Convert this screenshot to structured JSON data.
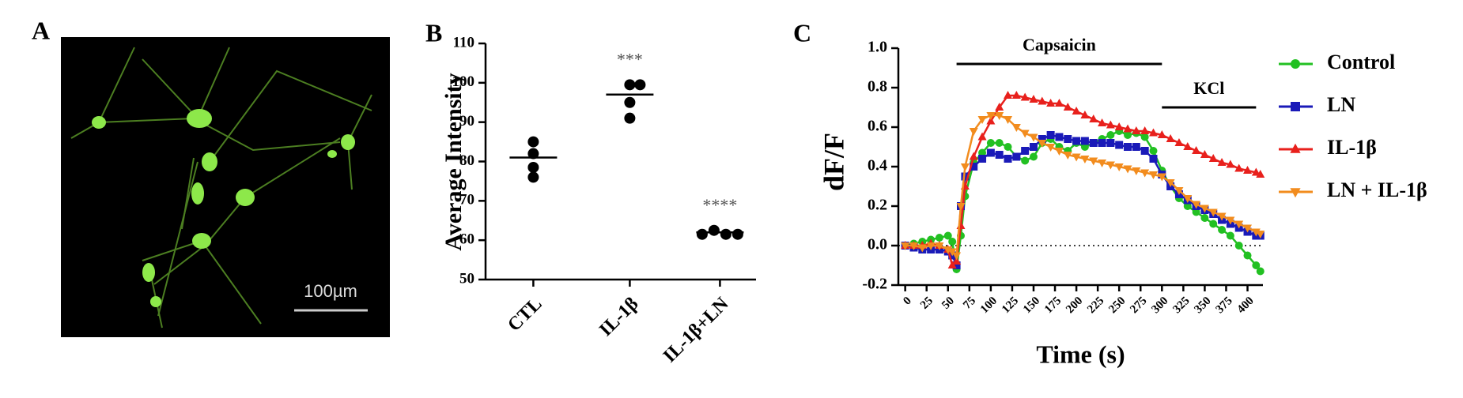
{
  "panel_a": {
    "label": "A",
    "scale_bar": "100µm"
  },
  "chart_data": [
    {
      "type": "dot",
      "panel_label": "B",
      "ylabel": "Average Intensity",
      "categories": [
        "CTL",
        "IL-1β",
        "IL-1β+LN"
      ],
      "values": [
        [
          85,
          82,
          78.5,
          76
        ],
        [
          99.5,
          99.5,
          95,
          91
        ],
        [
          61.5,
          62.5,
          61.5,
          61.5
        ]
      ],
      "means": [
        81,
        97,
        62
      ],
      "annotations": [
        null,
        "***",
        "****"
      ],
      "color": "#000000",
      "ylim": [
        50,
        110
      ],
      "yticks": [
        50,
        60,
        70,
        80,
        90,
        100,
        110
      ]
    },
    {
      "type": "line",
      "panel_label": "C",
      "xlabel": "Time (s)",
      "ylabel": "dF/F",
      "x": [
        0,
        10,
        20,
        30,
        40,
        50,
        55,
        60,
        65,
        70,
        80,
        90,
        100,
        110,
        120,
        130,
        140,
        150,
        160,
        170,
        180,
        190,
        200,
        210,
        220,
        230,
        240,
        250,
        260,
        270,
        280,
        290,
        300,
        310,
        320,
        330,
        340,
        350,
        360,
        370,
        380,
        390,
        400,
        410,
        415
      ],
      "series": [
        {
          "name": "Control",
          "color": "#22c022",
          "marker": "circle",
          "values": [
            0,
            0.01,
            0.02,
            0.03,
            0.04,
            0.05,
            0.02,
            -0.12,
            0.05,
            0.25,
            0.42,
            0.47,
            0.52,
            0.52,
            0.5,
            0.45,
            0.43,
            0.45,
            0.52,
            0.54,
            0.5,
            0.48,
            0.52,
            0.5,
            0.52,
            0.54,
            0.56,
            0.58,
            0.56,
            0.57,
            0.55,
            0.48,
            0.38,
            0.3,
            0.24,
            0.2,
            0.17,
            0.14,
            0.11,
            0.08,
            0.05,
            0.0,
            -0.05,
            -0.1,
            -0.13
          ]
        },
        {
          "name": "LN",
          "color": "#1a1ab8",
          "marker": "square",
          "values": [
            0,
            -0.01,
            -0.02,
            -0.02,
            -0.02,
            -0.03,
            -0.05,
            -0.1,
            0.2,
            0.35,
            0.4,
            0.44,
            0.47,
            0.46,
            0.44,
            0.45,
            0.48,
            0.5,
            0.54,
            0.56,
            0.55,
            0.54,
            0.53,
            0.53,
            0.52,
            0.52,
            0.52,
            0.51,
            0.5,
            0.5,
            0.48,
            0.44,
            0.36,
            0.3,
            0.26,
            0.23,
            0.2,
            0.18,
            0.16,
            0.13,
            0.11,
            0.09,
            0.07,
            0.05,
            0.05
          ]
        },
        {
          "name": "IL-1β",
          "color": "#e8201c",
          "marker": "triangle",
          "values": [
            0,
            0,
            0,
            0.01,
            0,
            -0.02,
            -0.1,
            -0.08,
            0.1,
            0.3,
            0.45,
            0.55,
            0.63,
            0.7,
            0.76,
            0.76,
            0.75,
            0.74,
            0.73,
            0.72,
            0.72,
            0.7,
            0.68,
            0.66,
            0.64,
            0.62,
            0.61,
            0.6,
            0.59,
            0.58,
            0.58,
            0.57,
            0.56,
            0.54,
            0.52,
            0.5,
            0.48,
            0.46,
            0.44,
            0.42,
            0.41,
            0.39,
            0.38,
            0.37,
            0.36
          ]
        },
        {
          "name": "LN + IL-1β",
          "color": "#f28c1e",
          "marker": "triangle-down",
          "values": [
            0,
            0,
            -0.01,
            0,
            0,
            -0.02,
            -0.03,
            -0.05,
            0.2,
            0.4,
            0.58,
            0.64,
            0.66,
            0.66,
            0.64,
            0.6,
            0.57,
            0.55,
            0.52,
            0.5,
            0.48,
            0.46,
            0.45,
            0.44,
            0.43,
            0.42,
            0.41,
            0.4,
            0.39,
            0.38,
            0.37,
            0.36,
            0.35,
            0.32,
            0.28,
            0.24,
            0.21,
            0.19,
            0.17,
            0.15,
            0.13,
            0.11,
            0.09,
            0.07,
            0.06
          ]
        }
      ],
      "annotations": [
        {
          "text": "Capsaicin",
          "x": [
            60,
            300
          ],
          "y": 0.92
        },
        {
          "text": "KCl",
          "x": [
            300,
            410
          ],
          "y": 0.7
        }
      ],
      "reference_line": 0,
      "xlim": [
        -8,
        418
      ],
      "xticks": [
        0,
        25,
        50,
        75,
        100,
        125,
        150,
        175,
        200,
        225,
        250,
        275,
        300,
        325,
        350,
        375,
        400
      ],
      "ylim": [
        -0.2,
        1.0
      ],
      "yticks": [
        -0.2,
        {
          "value": 0,
          "label": "0.0"
        },
        0.2,
        0.4,
        0.6,
        0.8,
        {
          "value": 1,
          "label": "1.0"
        }
      ]
    }
  ]
}
